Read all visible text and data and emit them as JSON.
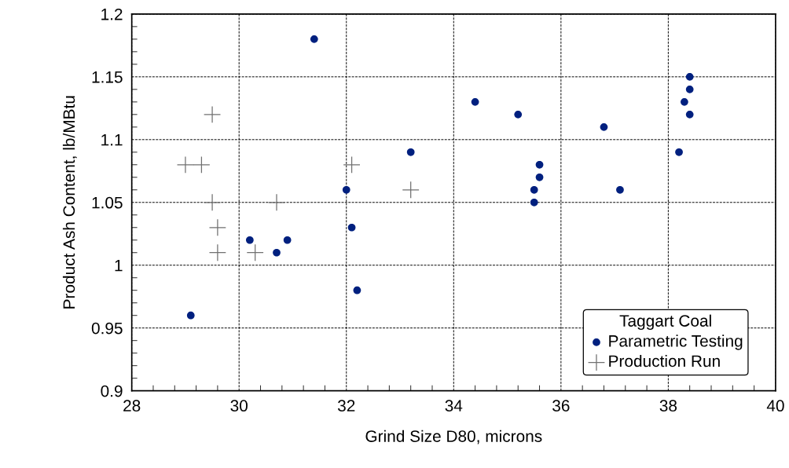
{
  "chart_data": {
    "type": "scatter",
    "xlabel": "Grind Size D80, microns",
    "ylabel": "Product Ash Content, lb/MBtu",
    "legend_title": "Taggart Coal",
    "legend": "bottom right",
    "grid": true,
    "xlim": [
      28,
      40
    ],
    "xticks": [
      28,
      30,
      32,
      34,
      36,
      38,
      40
    ],
    "ylim": [
      0.9,
      1.2
    ],
    "yticks": [
      0.9,
      0.95,
      1,
      1.05,
      1.1,
      1.15,
      1.2
    ],
    "series": [
      {
        "name": "Parametric Testing",
        "color": "#00207f",
        "marker": "circle",
        "x": [
          29.1,
          30.2,
          30.7,
          30.9,
          31.4,
          32.0,
          32.1,
          32.2,
          33.2,
          34.4,
          35.2,
          35.5,
          35.5,
          35.6,
          35.6,
          36.8,
          37.1,
          38.2,
          38.3,
          38.4,
          38.4,
          38.4
        ],
        "values": [
          0.96,
          1.02,
          1.01,
          1.02,
          1.18,
          1.06,
          1.03,
          0.98,
          1.09,
          1.13,
          1.12,
          1.06,
          1.05,
          1.08,
          1.07,
          1.11,
          1.06,
          1.09,
          1.13,
          1.15,
          1.14,
          1.12
        ]
      },
      {
        "name": "Production Run",
        "color": "#707070",
        "marker": "cross",
        "x": [
          29.0,
          29.3,
          29.5,
          29.5,
          29.6,
          29.6,
          30.3,
          30.7,
          32.1,
          33.2
        ],
        "values": [
          1.08,
          1.08,
          1.12,
          1.05,
          1.03,
          1.01,
          1.01,
          1.05,
          1.08,
          1.06
        ]
      }
    ]
  }
}
